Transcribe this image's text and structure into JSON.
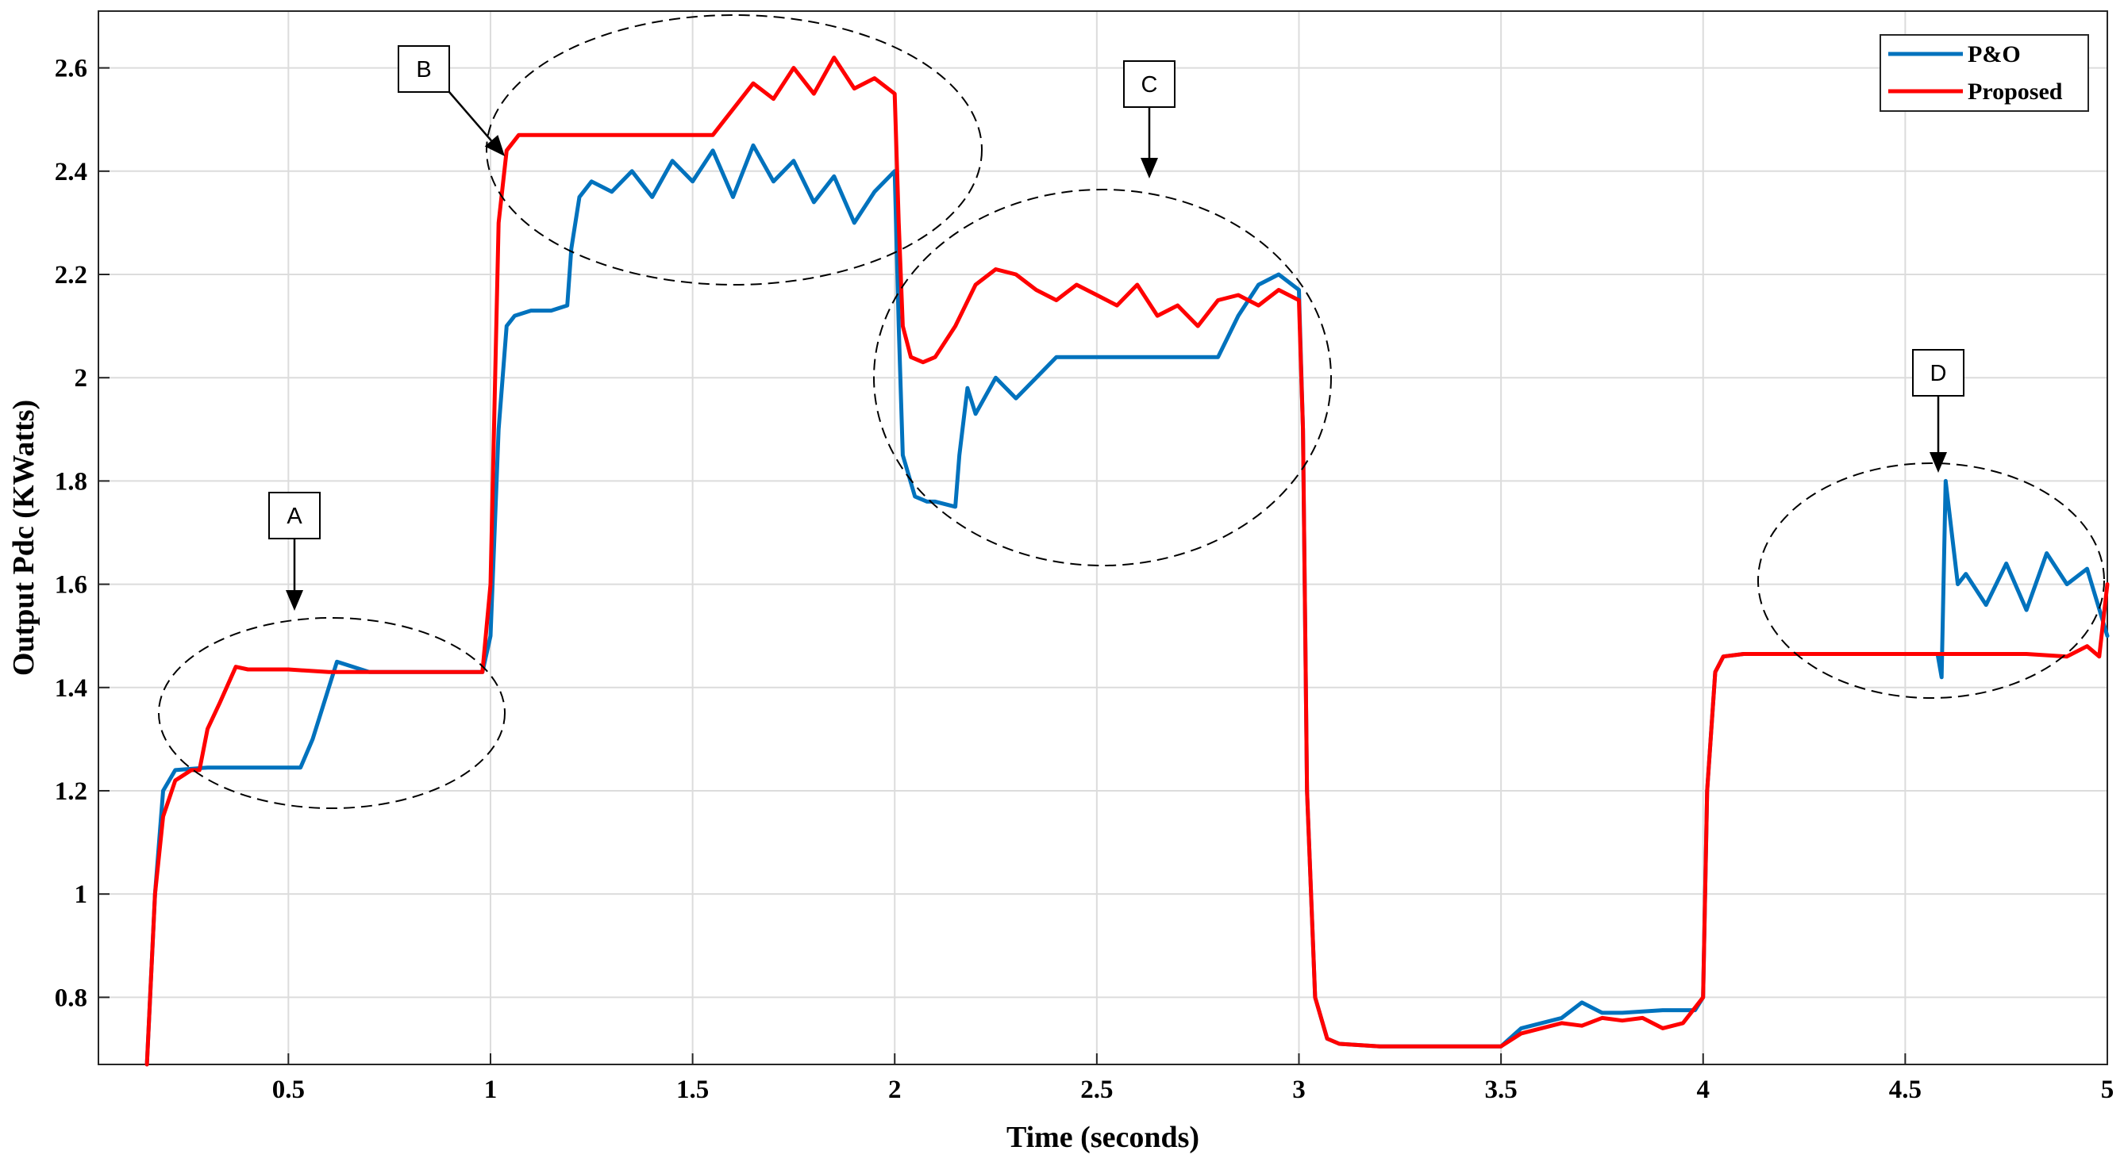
{
  "chart_data": {
    "type": "line",
    "title": "",
    "xlabel": "Time (seconds)",
    "ylabel": "Output Pdc (KWatts)",
    "xlim": [
      0.03,
      5.0
    ],
    "ylim": [
      0.67,
      2.71
    ],
    "xticks": [
      0.5,
      1,
      1.5,
      2,
      2.5,
      3,
      3.5,
      4,
      4.5,
      5
    ],
    "xtick_labels": [
      "0.5",
      "1",
      "1.5",
      "2",
      "2.5",
      "3",
      "3.5",
      "4",
      "4.5",
      "5"
    ],
    "yticks": [
      0.8,
      1.0,
      1.2,
      1.4,
      1.6,
      1.8,
      2.0,
      2.2,
      2.4,
      2.6
    ],
    "ytick_labels": [
      "0.8",
      "1",
      "1.2",
      "1.4",
      "1.6",
      "1.8",
      "2",
      "2.2",
      "2.4",
      "2.6"
    ],
    "grid": true,
    "legend_position": "top-right",
    "series": [
      {
        "name": "P&O",
        "color": "#0072BD",
        "x": [
          0.15,
          0.17,
          0.19,
          0.22,
          0.3,
          0.4,
          0.5,
          0.53,
          0.56,
          0.6,
          0.62,
          0.7,
          0.8,
          0.9,
          0.98,
          1.0,
          1.02,
          1.04,
          1.06,
          1.1,
          1.15,
          1.19,
          1.2,
          1.22,
          1.25,
          1.3,
          1.35,
          1.4,
          1.45,
          1.5,
          1.55,
          1.6,
          1.65,
          1.7,
          1.75,
          1.8,
          1.85,
          1.9,
          1.95,
          2.0,
          2.01,
          2.02,
          2.05,
          2.08,
          2.1,
          2.15,
          2.16,
          2.18,
          2.2,
          2.25,
          2.3,
          2.35,
          2.4,
          2.5,
          2.6,
          2.7,
          2.8,
          2.85,
          2.9,
          2.95,
          3.0,
          3.01,
          3.02,
          3.04,
          3.07,
          3.1,
          3.2,
          3.3,
          3.4,
          3.5,
          3.55,
          3.6,
          3.65,
          3.7,
          3.75,
          3.8,
          3.9,
          3.98,
          4.0,
          4.01,
          4.03,
          4.05,
          4.1,
          4.2,
          4.3,
          4.4,
          4.5,
          4.58,
          4.59,
          4.6,
          4.63,
          4.65,
          4.7,
          4.75,
          4.8,
          4.85,
          4.9,
          4.95,
          5.0
        ],
        "y": [
          0.67,
          1.0,
          1.2,
          1.24,
          1.245,
          1.245,
          1.245,
          1.245,
          1.3,
          1.4,
          1.45,
          1.43,
          1.43,
          1.43,
          1.43,
          1.5,
          1.9,
          2.1,
          2.12,
          2.13,
          2.13,
          2.14,
          2.25,
          2.35,
          2.38,
          2.36,
          2.4,
          2.35,
          2.42,
          2.38,
          2.44,
          2.35,
          2.45,
          2.38,
          2.42,
          2.34,
          2.39,
          2.3,
          2.36,
          2.4,
          2.1,
          1.85,
          1.77,
          1.76,
          1.76,
          1.75,
          1.85,
          1.98,
          1.93,
          2.0,
          1.96,
          2.0,
          2.04,
          2.04,
          2.04,
          2.04,
          2.04,
          2.12,
          2.18,
          2.2,
          2.17,
          1.9,
          1.2,
          0.8,
          0.72,
          0.71,
          0.705,
          0.705,
          0.705,
          0.705,
          0.74,
          0.75,
          0.76,
          0.79,
          0.77,
          0.77,
          0.775,
          0.775,
          0.8,
          1.2,
          1.43,
          1.46,
          1.465,
          1.465,
          1.465,
          1.465,
          1.465,
          1.465,
          1.42,
          1.8,
          1.6,
          1.62,
          1.56,
          1.64,
          1.55,
          1.66,
          1.6,
          1.63,
          1.5
        ]
      },
      {
        "name": "Proposed",
        "color": "#FF0000",
        "x": [
          0.15,
          0.17,
          0.19,
          0.22,
          0.26,
          0.28,
          0.3,
          0.33,
          0.37,
          0.4,
          0.5,
          0.6,
          0.7,
          0.8,
          0.9,
          0.98,
          1.0,
          1.02,
          1.04,
          1.07,
          1.1,
          1.2,
          1.3,
          1.4,
          1.5,
          1.55,
          1.58,
          1.6,
          1.65,
          1.7,
          1.75,
          1.8,
          1.85,
          1.9,
          1.95,
          2.0,
          2.01,
          2.02,
          2.04,
          2.07,
          2.1,
          2.15,
          2.2,
          2.25,
          2.3,
          2.35,
          2.4,
          2.45,
          2.5,
          2.55,
          2.6,
          2.65,
          2.7,
          2.75,
          2.8,
          2.85,
          2.9,
          2.95,
          3.0,
          3.01,
          3.02,
          3.04,
          3.07,
          3.1,
          3.2,
          3.3,
          3.4,
          3.5,
          3.55,
          3.6,
          3.65,
          3.7,
          3.75,
          3.8,
          3.85,
          3.9,
          3.95,
          4.0,
          4.01,
          4.03,
          4.05,
          4.1,
          4.2,
          4.3,
          4.4,
          4.5,
          4.6,
          4.7,
          4.8,
          4.9,
          4.95,
          4.98,
          5.0
        ],
        "y": [
          0.67,
          1.0,
          1.15,
          1.22,
          1.24,
          1.24,
          1.32,
          1.37,
          1.44,
          1.435,
          1.435,
          1.43,
          1.43,
          1.43,
          1.43,
          1.43,
          1.6,
          2.3,
          2.44,
          2.47,
          2.47,
          2.47,
          2.47,
          2.47,
          2.47,
          2.47,
          2.5,
          2.52,
          2.57,
          2.54,
          2.6,
          2.55,
          2.62,
          2.56,
          2.58,
          2.55,
          2.3,
          2.1,
          2.04,
          2.03,
          2.04,
          2.1,
          2.18,
          2.21,
          2.2,
          2.17,
          2.15,
          2.18,
          2.16,
          2.14,
          2.18,
          2.12,
          2.14,
          2.1,
          2.15,
          2.16,
          2.14,
          2.17,
          2.15,
          1.9,
          1.2,
          0.8,
          0.72,
          0.71,
          0.705,
          0.705,
          0.705,
          0.705,
          0.73,
          0.74,
          0.75,
          0.745,
          0.76,
          0.755,
          0.76,
          0.74,
          0.75,
          0.8,
          1.2,
          1.43,
          1.46,
          1.465,
          1.465,
          1.465,
          1.465,
          1.465,
          1.465,
          1.465,
          1.465,
          1.46,
          1.48,
          1.46,
          1.6
        ]
      }
    ],
    "annotations": [
      {
        "label": "A"
      },
      {
        "label": "B"
      },
      {
        "label": "C"
      },
      {
        "label": "D"
      }
    ]
  }
}
